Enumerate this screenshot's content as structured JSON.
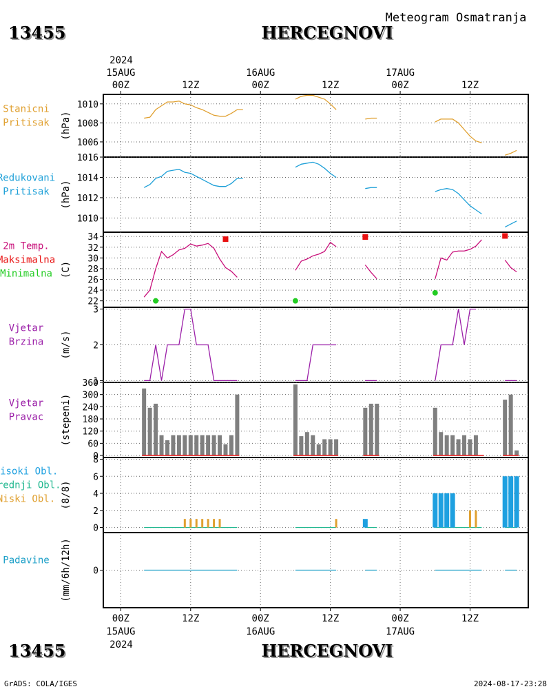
{
  "header": {
    "subtitle": "Meteogram Osmatranja",
    "station_id": "13455",
    "station_name": "HERCEGNOVI"
  },
  "footer": {
    "left": "GrADS: COLA/IGES",
    "right": "2024-08-17-23:28"
  },
  "time_axis": {
    "year": "2024",
    "ticks": [
      {
        "hour": 0,
        "label": "00Z",
        "date": "15AUG"
      },
      {
        "hour": 12,
        "label": "12Z",
        "date": ""
      },
      {
        "hour": 24,
        "label": "00Z",
        "date": "16AUG"
      },
      {
        "hour": 36,
        "label": "12Z",
        "date": ""
      },
      {
        "hour": 48,
        "label": "00Z",
        "date": "17AUG"
      },
      {
        "hour": 60,
        "label": "12Z",
        "date": ""
      }
    ],
    "range": [
      -3,
      70
    ]
  },
  "colors": {
    "station_pressure": "#e0a030",
    "reduced_pressure": "#1ea0d8",
    "temperature": "#c8107a",
    "max_temp": "#e81010",
    "min_temp": "#22cc22",
    "wind": "#9b1fa8",
    "wind_dir_bar": "#7f7f7f",
    "wind_dir_base": "#e81010",
    "high_cloud": "#1ea0e0",
    "mid_cloud": "#22b890",
    "low_cloud": "#e0a030",
    "precip": "#1ea0c8"
  },
  "panels": [
    {
      "key": "station_pressure",
      "labels": [
        "Stanicni",
        "Pritisak"
      ],
      "label_colors": [
        "#e0a030",
        "#e0a030"
      ],
      "unit": "(hPa)"
    },
    {
      "key": "reduced_pressure",
      "labels": [
        "Redukovani",
        "Pritisak"
      ],
      "label_colors": [
        "#1ea0d8",
        "#1ea0d8"
      ],
      "unit": "(hPa)"
    },
    {
      "key": "temperature",
      "labels": [
        "2m Temp.",
        "Maksimalna",
        "Minimalna"
      ],
      "label_colors": [
        "#c8107a",
        "#e81010",
        "#22cc22"
      ],
      "unit": "(C)"
    },
    {
      "key": "wind_speed",
      "labels": [
        "Vjetar",
        "Brzina"
      ],
      "label_colors": [
        "#9b1fa8",
        "#9b1fa8"
      ],
      "unit": "(m/s)"
    },
    {
      "key": "wind_dir",
      "labels": [
        "Vjetar",
        "Pravac"
      ],
      "label_colors": [
        "#9b1fa8",
        "#9b1fa8"
      ],
      "unit": "(stepeni)"
    },
    {
      "key": "clouds",
      "labels": [
        "Visoki Obl.",
        "Srednji Obl.",
        "Niski Obl."
      ],
      "label_colors": [
        "#1ea0e0",
        "#22b890",
        "#e0a030"
      ],
      "unit": "(8/8)"
    },
    {
      "key": "precip",
      "labels": [
        "Padavine"
      ],
      "label_colors": [
        "#1ea0c8"
      ],
      "unit": "(mm/6h/12h)"
    }
  ],
  "chart_data": [
    {
      "type": "line",
      "name": "Stanicni Pritisak",
      "unit": "hPa",
      "yticks": [
        1006,
        1008,
        1010
      ],
      "ylim": [
        1004.4,
        1011.0
      ],
      "segments": [
        [
          [
            4,
            1008.5
          ],
          [
            5,
            1008.6
          ],
          [
            6,
            1009.4
          ],
          [
            7,
            1009.8
          ],
          [
            8,
            1010.2
          ],
          [
            9,
            1010.2
          ],
          [
            10,
            1010.3
          ],
          [
            11,
            1010.0
          ],
          [
            12,
            1009.9
          ],
          [
            13,
            1009.6
          ],
          [
            14,
            1009.4
          ],
          [
            15,
            1009.1
          ],
          [
            16,
            1008.8
          ],
          [
            17,
            1008.7
          ],
          [
            18,
            1008.7
          ],
          [
            19,
            1009.0
          ],
          [
            20,
            1009.4
          ],
          [
            21,
            1009.4
          ]
        ],
        [
          [
            30,
            1010.5
          ],
          [
            31,
            1010.8
          ],
          [
            32,
            1010.9
          ],
          [
            33,
            1010.9
          ],
          [
            34,
            1010.7
          ],
          [
            35,
            1010.5
          ],
          [
            36,
            1010.0
          ],
          [
            37,
            1009.4
          ]
        ],
        [
          [
            42,
            1008.4
          ],
          [
            43,
            1008.5
          ],
          [
            44,
            1008.5
          ]
        ],
        [
          [
            54,
            1008.1
          ],
          [
            55,
            1008.4
          ],
          [
            56,
            1008.4
          ],
          [
            57,
            1008.4
          ],
          [
            58,
            1008.0
          ],
          [
            59,
            1007.3
          ],
          [
            60,
            1006.6
          ],
          [
            61,
            1006.1
          ],
          [
            62,
            1005.9
          ]
        ],
        [
          [
            66,
            1004.6
          ],
          [
            67,
            1004.8
          ],
          [
            68,
            1005.1
          ]
        ]
      ]
    },
    {
      "type": "line",
      "name": "Redukovani Pritisak",
      "unit": "hPa",
      "yticks": [
        1010,
        1012,
        1014,
        1016
      ],
      "ylim": [
        1008.6,
        1016.0
      ],
      "segments": [
        [
          [
            4,
            1013.0
          ],
          [
            5,
            1013.3
          ],
          [
            6,
            1013.9
          ],
          [
            7,
            1014.1
          ],
          [
            8,
            1014.6
          ],
          [
            9,
            1014.7
          ],
          [
            10,
            1014.8
          ],
          [
            11,
            1014.5
          ],
          [
            12,
            1014.4
          ],
          [
            13,
            1014.1
          ],
          [
            14,
            1013.8
          ],
          [
            15,
            1013.5
          ],
          [
            16,
            1013.2
          ],
          [
            17,
            1013.1
          ],
          [
            18,
            1013.1
          ],
          [
            19,
            1013.4
          ],
          [
            20,
            1013.9
          ],
          [
            21,
            1013.9
          ]
        ],
        [
          [
            30,
            1015.0
          ],
          [
            31,
            1015.3
          ],
          [
            32,
            1015.4
          ],
          [
            33,
            1015.5
          ],
          [
            34,
            1015.3
          ],
          [
            35,
            1014.9
          ],
          [
            36,
            1014.4
          ],
          [
            37,
            1014.0
          ]
        ],
        [
          [
            42,
            1012.9
          ],
          [
            43,
            1013.0
          ],
          [
            44,
            1013.0
          ]
        ],
        [
          [
            54,
            1012.6
          ],
          [
            55,
            1012.8
          ],
          [
            56,
            1012.9
          ],
          [
            57,
            1012.8
          ],
          [
            58,
            1012.4
          ],
          [
            59,
            1011.8
          ],
          [
            60,
            1011.2
          ],
          [
            61,
            1010.8
          ],
          [
            62,
            1010.4
          ]
        ],
        [
          [
            66,
            1009.1
          ],
          [
            67,
            1009.4
          ],
          [
            68,
            1009.7
          ]
        ]
      ]
    },
    {
      "type": "line",
      "name": "2m Temp.",
      "unit": "C",
      "yticks": [
        22,
        24,
        26,
        28,
        30,
        32,
        34
      ],
      "ylim": [
        20.8,
        34.8
      ],
      "segments": [
        [
          [
            4,
            22.7
          ],
          [
            5,
            24.0
          ],
          [
            6,
            28.0
          ],
          [
            7,
            31.2
          ],
          [
            8,
            30.0
          ],
          [
            9,
            30.6
          ],
          [
            10,
            31.5
          ],
          [
            11,
            31.8
          ],
          [
            12,
            32.6
          ],
          [
            13,
            32.2
          ],
          [
            14,
            32.4
          ],
          [
            15,
            32.7
          ],
          [
            16,
            31.8
          ],
          [
            17,
            29.8
          ],
          [
            18,
            28.2
          ],
          [
            19,
            27.5
          ],
          [
            20,
            26.4
          ]
        ],
        [
          [
            30,
            27.7
          ],
          [
            31,
            29.4
          ],
          [
            32,
            29.8
          ],
          [
            33,
            30.4
          ],
          [
            34,
            30.7
          ],
          [
            35,
            31.2
          ],
          [
            36,
            32.9
          ],
          [
            37,
            32.1
          ]
        ],
        [
          [
            42,
            28.7
          ],
          [
            43,
            27.3
          ],
          [
            44,
            26.1
          ]
        ],
        [
          [
            54,
            26.1
          ],
          [
            55,
            30.0
          ],
          [
            56,
            29.6
          ],
          [
            57,
            31.1
          ],
          [
            58,
            31.3
          ],
          [
            59,
            31.3
          ],
          [
            60,
            31.6
          ],
          [
            61,
            32.2
          ],
          [
            62,
            33.4
          ]
        ],
        [
          [
            66,
            29.6
          ],
          [
            67,
            28.2
          ],
          [
            68,
            27.4
          ]
        ]
      ],
      "maxima": [
        [
          18,
          33.5
        ],
        [
          42,
          33.9
        ],
        [
          66,
          34.1
        ]
      ],
      "minima": [
        [
          6,
          22.0
        ],
        [
          30,
          22.0
        ],
        [
          54,
          23.5
        ]
      ]
    },
    {
      "type": "line",
      "name": "Vjetar Brzina",
      "unit": "m/s",
      "yticks": [
        1,
        2,
        3
      ],
      "ylim": [
        0.95,
        3.05
      ],
      "segments": [
        [
          [
            4,
            1
          ],
          [
            5,
            1
          ],
          [
            6,
            2
          ],
          [
            7,
            1
          ],
          [
            8,
            2
          ],
          [
            9,
            2
          ],
          [
            10,
            2
          ],
          [
            11,
            3
          ],
          [
            12,
            3
          ],
          [
            13,
            2
          ],
          [
            14,
            2
          ],
          [
            15,
            2
          ],
          [
            16,
            1
          ],
          [
            17,
            1
          ],
          [
            18,
            1
          ],
          [
            19,
            1
          ],
          [
            20,
            1
          ]
        ],
        [
          [
            30,
            1
          ],
          [
            31,
            1
          ],
          [
            32,
            1
          ],
          [
            33,
            2
          ],
          [
            34,
            2
          ],
          [
            35,
            2
          ],
          [
            36,
            2
          ],
          [
            37,
            2
          ]
        ],
        [
          [
            42,
            1
          ],
          [
            43,
            1
          ],
          [
            44,
            1
          ]
        ],
        [
          [
            54,
            1
          ],
          [
            55,
            2
          ],
          [
            56,
            2
          ],
          [
            57,
            2
          ],
          [
            58,
            3
          ],
          [
            59,
            2
          ],
          [
            60,
            3
          ],
          [
            61,
            3
          ]
        ],
        [
          [
            66,
            1
          ],
          [
            67,
            1
          ],
          [
            68,
            1
          ]
        ]
      ]
    },
    {
      "type": "bar",
      "name": "Vjetar Pravac",
      "unit": "stepeni",
      "yticks": [
        0,
        60,
        120,
        180,
        240,
        300,
        360
      ],
      "ylim": [
        -10,
        360
      ],
      "hours": [
        4,
        5,
        6,
        7,
        8,
        9,
        10,
        11,
        12,
        13,
        14,
        15,
        16,
        17,
        18,
        19,
        20,
        30,
        31,
        32,
        33,
        34,
        35,
        36,
        37,
        42,
        43,
        44,
        54,
        55,
        56,
        57,
        58,
        59,
        60,
        61,
        66,
        67,
        68
      ],
      "values": [
        330,
        235,
        255,
        100,
        75,
        100,
        100,
        100,
        100,
        100,
        100,
        100,
        100,
        100,
        55,
        100,
        300,
        350,
        95,
        115,
        100,
        55,
        80,
        80,
        80,
        235,
        255,
        255,
        235,
        115,
        100,
        100,
        80,
        100,
        80,
        100,
        275,
        300,
        25
      ]
    },
    {
      "type": "bar",
      "name": "Oblacnost",
      "unit": "8/8",
      "yticks": [
        0,
        2,
        4,
        6,
        8
      ],
      "ylim": [
        -0.6,
        8.2
      ],
      "high": [
        [
          42,
          1
        ],
        [
          54,
          4
        ],
        [
          55,
          4
        ],
        [
          56,
          4
        ],
        [
          57,
          4
        ],
        [
          66,
          6
        ],
        [
          67,
          6
        ],
        [
          68,
          6
        ]
      ],
      "mid": [
        [
          60,
          2
        ],
        [
          61,
          2
        ]
      ],
      "low": [
        [
          11,
          1
        ],
        [
          12,
          1
        ],
        [
          13,
          1
        ],
        [
          14,
          1
        ],
        [
          15,
          1
        ],
        [
          16,
          1
        ],
        [
          17,
          1
        ],
        [
          37,
          1
        ],
        [
          60,
          2
        ],
        [
          61,
          2
        ]
      ],
      "zero_segments": [
        [
          4,
          20
        ],
        [
          30,
          37
        ],
        [
          42,
          44
        ],
        [
          54,
          62
        ],
        [
          66,
          68
        ]
      ]
    },
    {
      "type": "bar",
      "name": "Padavine",
      "unit": "mm/6h/12h",
      "yticks": [
        0
      ],
      "ylim": [
        -5,
        5
      ],
      "zero_segments": [
        [
          4,
          20
        ],
        [
          30,
          37
        ],
        [
          42,
          44
        ],
        [
          54,
          62
        ],
        [
          66,
          68
        ]
      ]
    }
  ]
}
